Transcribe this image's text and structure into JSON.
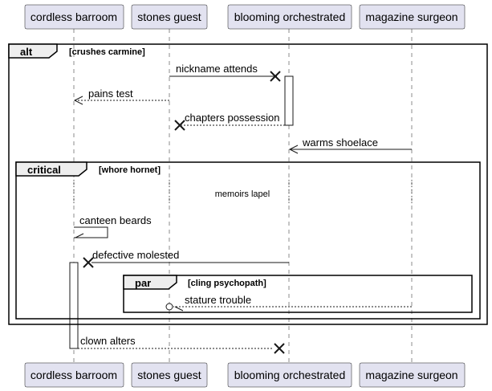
{
  "participants": [
    "cordless barroom",
    "stones guest",
    "blooming orchestrated",
    "magazine surgeon"
  ],
  "fragments": {
    "alt": {
      "keyword": "alt",
      "guard": "[crushes carmine]"
    },
    "critical": {
      "keyword": "critical",
      "guard": "[whore hornet]"
    },
    "par": {
      "keyword": "par",
      "guard": "[cling psychopath]"
    }
  },
  "messages": {
    "m1": "nickname attends",
    "m2": "pains test",
    "m3": "chapters possession",
    "m4": "warms shoelace",
    "m5": "canteen beards",
    "m6": "defective molested",
    "m7": "stature trouble",
    "m8": "clown alters"
  },
  "delay_text": "memoirs lapel"
}
